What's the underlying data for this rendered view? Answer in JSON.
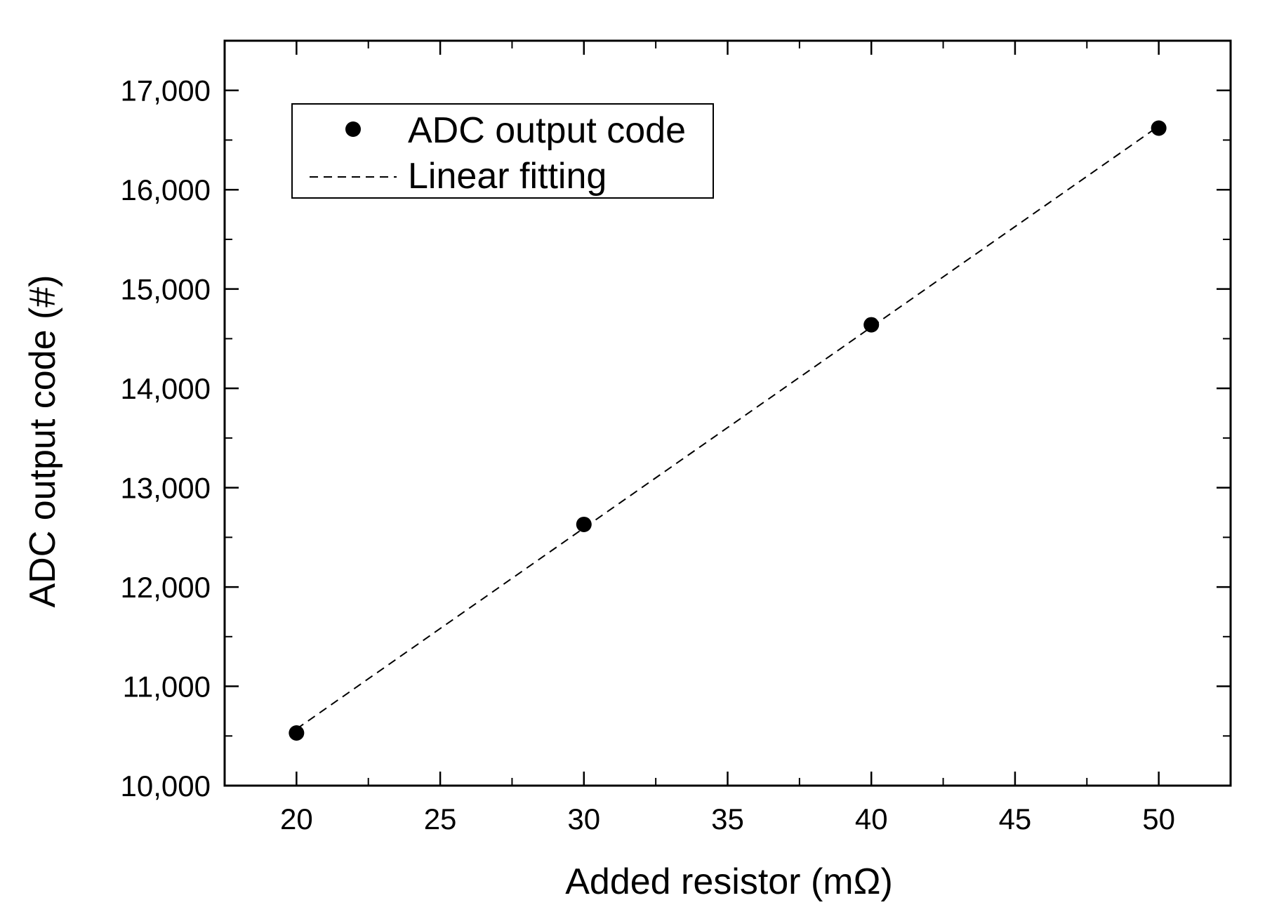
{
  "chart_data": {
    "type": "scatter",
    "xlabel": "Added resistor (mΩ)",
    "ylabel": "ADC output code (#)",
    "xlim": [
      17.5,
      52.5
    ],
    "ylim": [
      10000,
      17500
    ],
    "x_ticks": [
      "20",
      "25",
      "30",
      "35",
      "40",
      "45",
      "50"
    ],
    "y_ticks": [
      "10,000",
      "11,000",
      "12,000",
      "13,000",
      "14,000",
      "15,000",
      "16,000",
      "17,000"
    ],
    "series": [
      {
        "name": "ADC output code",
        "kind": "marker",
        "x": [
          20,
          30,
          40,
          50
        ],
        "y": [
          10530,
          12630,
          14640,
          16620
        ]
      },
      {
        "name": "Linear fitting",
        "kind": "dashed-line",
        "x": [
          20,
          50
        ],
        "y": [
          10570,
          16640
        ]
      }
    ],
    "legend_position": "top-left",
    "grid": false,
    "colors": {
      "markers": "#000000",
      "fit_line": "#000000"
    }
  }
}
